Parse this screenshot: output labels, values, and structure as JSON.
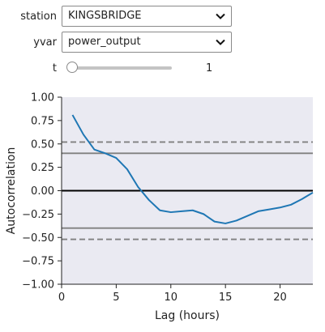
{
  "controls": {
    "station": {
      "label": "station",
      "value": "KINGSBRIDGE"
    },
    "yvar": {
      "label": "yvar",
      "value": "power_output"
    },
    "t": {
      "label": "t",
      "value": "1"
    }
  },
  "chart_data": {
    "type": "line",
    "xlabel": "Lag (hours)",
    "ylabel": "Autocorrelation",
    "xlim": [
      0,
      23
    ],
    "ylim": [
      -1.0,
      1.0
    ],
    "x_ticks": [
      "0",
      "5",
      "10",
      "15",
      "20"
    ],
    "y_ticks": [
      "1.00",
      "0.75",
      "0.50",
      "0.25",
      "0.00",
      "−0.25",
      "−0.50",
      "−0.75",
      "−1.00"
    ],
    "plot_background": "#eaeaf2",
    "line_color": "#1f77b4",
    "series": [
      {
        "x": [
          1,
          2,
          3,
          4,
          5,
          6,
          7,
          8,
          9,
          10,
          11,
          12,
          13,
          14,
          15,
          16,
          17,
          18,
          19,
          20,
          21,
          22,
          23
        ],
        "values": [
          0.81,
          0.6,
          0.44,
          0.4,
          0.35,
          0.23,
          0.04,
          -0.1,
          -0.21,
          -0.23,
          -0.22,
          -0.21,
          -0.25,
          -0.33,
          -0.35,
          -0.32,
          -0.27,
          -0.22,
          -0.2,
          -0.18,
          -0.15,
          -0.09,
          -0.02
        ]
      }
    ],
    "reference_lines": [
      {
        "y": 0.0,
        "style": "solid",
        "color": "#000000"
      },
      {
        "y": 0.4,
        "style": "solid",
        "color": "#808080"
      },
      {
        "y": -0.4,
        "style": "solid",
        "color": "#808080"
      },
      {
        "y": 0.52,
        "style": "dashed",
        "color": "#808080"
      },
      {
        "y": -0.52,
        "style": "dashed",
        "color": "#808080"
      }
    ]
  }
}
